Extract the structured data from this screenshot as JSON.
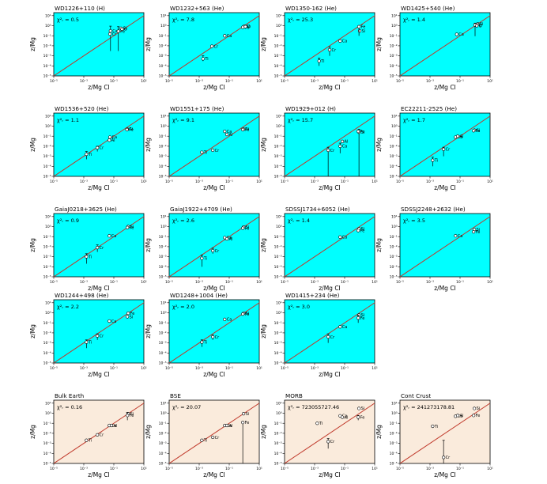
{
  "figure": {
    "axes": {
      "xlabel": "z/Mg CI",
      "ylabel": "z/Mg",
      "xticks": [
        "10⁻⁵",
        "10⁻³",
        "10⁻¹",
        "10¹"
      ],
      "yticks": [
        "10¹",
        "10⁰",
        "10⁻¹",
        "10⁻²",
        "10⁻³",
        "10⁻⁴",
        "10⁻⁵"
      ],
      "chi_label": "χ²ᵣ ="
    },
    "colors": {
      "white_dwarf_bg": "#00ffff",
      "earth_bg": "#faebdc",
      "line": "#c0392b"
    }
  },
  "chart_data": [
    {
      "type": "scatter",
      "title": "WD1226+110 (H)",
      "chi": "0.5",
      "bg": "wd",
      "points": [
        {
          "el": "Ca",
          "x": 0.06,
          "y": 0.3,
          "err": [
            0.003,
            0.9
          ]
        },
        {
          "el": "Cr",
          "x": 0.055,
          "y": 0.15
        },
        {
          "el": "Si",
          "x": 0.3,
          "y": 0.55
        },
        {
          "el": "Fe",
          "x": 0.2,
          "y": 0.28,
          "err": [
            0.003,
            0.8
          ]
        },
        {
          "el": "O",
          "x": 0.35,
          "y": 0.45
        }
      ]
    },
    {
      "type": "scatter",
      "title": "WD1232+563 (He)",
      "chi": "7.8",
      "bg": "wd",
      "points": [
        {
          "el": "Ti",
          "x": 0.0018,
          "y": 0.0005,
          "err": [
            0.0003,
            0.001
          ]
        },
        {
          "el": "Cr",
          "x": 0.007,
          "y": 0.009
        },
        {
          "el": "Ca",
          "x": 0.05,
          "y": 0.1
        },
        {
          "el": "Si",
          "x": 1.0,
          "y": 0.9
        },
        {
          "el": "Fe",
          "x": 0.8,
          "y": 0.7
        },
        {
          "el": "O",
          "x": 1.2,
          "y": 0.8
        }
      ]
    },
    {
      "type": "scatter",
      "title": "WD1350-162 (He)",
      "chi": "25.3",
      "bg": "wd",
      "points": [
        {
          "el": "Ti",
          "x": 0.002,
          "y": 0.0003,
          "err": [
            0.0001,
            0.0006
          ]
        },
        {
          "el": "Cr",
          "x": 0.01,
          "y": 0.004,
          "err": [
            0.001,
            0.008
          ]
        },
        {
          "el": "Ca",
          "x": 0.05,
          "y": 0.03
        },
        {
          "el": "Si",
          "x": 1.0,
          "y": 0.3
        },
        {
          "el": "Fe",
          "x": 0.9,
          "y": 0.8,
          "err": [
            0.1,
            1.0
          ]
        }
      ]
    },
    {
      "type": "scatter",
      "title": "WD1425+540 (He)",
      "chi": "1.4",
      "bg": "wd",
      "points": [
        {
          "el": "Ca",
          "x": 0.06,
          "y": 0.14
        },
        {
          "el": "Si",
          "x": 1.5,
          "y": 1.5
        },
        {
          "el": "Fe",
          "x": 1.0,
          "y": 1.2,
          "err": [
            0.09,
            1.8
          ]
        },
        {
          "el": "O",
          "x": 1.3,
          "y": 1.0
        }
      ]
    },
    {
      "type": "scatter",
      "title": "WD1536+520 (He)",
      "chi": "1.1",
      "bg": "wd",
      "points": [
        {
          "el": "Ti",
          "x": 0.0015,
          "y": 0.0016,
          "err": [
            0.0005,
            0.003
          ]
        },
        {
          "el": "Cr",
          "x": 0.008,
          "y": 0.007,
          "err": [
            0.003,
            0.01
          ]
        },
        {
          "el": "Al",
          "x": 0.05,
          "y": 0.04
        },
        {
          "el": "Ca",
          "x": 0.055,
          "y": 0.08
        },
        {
          "el": "Si",
          "x": 0.8,
          "y": 0.5
        },
        {
          "el": "Fe",
          "x": 0.75,
          "y": 0.45
        }
      ]
    },
    {
      "type": "scatter",
      "title": "WD1551+175 (He)",
      "chi": "9.1",
      "bg": "wd",
      "points": [
        {
          "el": "Ti",
          "x": 0.0015,
          "y": 0.0025
        },
        {
          "el": "Cr",
          "x": 0.008,
          "y": 0.004
        },
        {
          "el": "Ca",
          "x": 0.05,
          "y": 0.3
        },
        {
          "el": "Al",
          "x": 0.07,
          "y": 0.15
        },
        {
          "el": "Si",
          "x": 0.9,
          "y": 0.5
        },
        {
          "el": "Fe",
          "x": 0.8,
          "y": 0.45
        }
      ]
    },
    {
      "type": "scatter",
      "title": "WD1929+012 (H)",
      "chi": "15.7",
      "bg": "wd",
      "points": [
        {
          "el": "Cr",
          "x": 0.008,
          "y": 0.004,
          "err": [
            1e-05,
            0.008
          ]
        },
        {
          "el": "Ca",
          "x": 0.05,
          "y": 0.01,
          "err": [
            0.002,
            0.02
          ]
        },
        {
          "el": "Al",
          "x": 0.07,
          "y": 0.03
        },
        {
          "el": "Si",
          "x": 0.9,
          "y": 0.25,
          "err": [
            1e-05,
            0.5
          ]
        },
        {
          "el": "Fe",
          "x": 0.8,
          "y": 0.3
        }
      ]
    },
    {
      "type": "scatter",
      "title": "EC22211-2525 (He)",
      "chi": "1.7",
      "bg": "wd",
      "points": [
        {
          "el": "Ti",
          "x": 0.0015,
          "y": 0.0004,
          "err": [
            0.0001,
            0.0008
          ]
        },
        {
          "el": "Cr",
          "x": 0.008,
          "y": 0.005,
          "err": [
            0.001,
            0.008
          ]
        },
        {
          "el": "Ca",
          "x": 0.05,
          "y": 0.08
        },
        {
          "el": "Al",
          "x": 0.07,
          "y": 0.1
        },
        {
          "el": "Si",
          "x": 0.9,
          "y": 0.4
        },
        {
          "el": "Fe",
          "x": 0.8,
          "y": 0.35
        }
      ]
    },
    {
      "type": "scatter",
      "title": "GaiaJ0218+3625 (He)",
      "chi": "0.9",
      "bg": "wd",
      "points": [
        {
          "el": "Ti",
          "x": 0.0015,
          "y": 0.001,
          "err": [
            0.0002,
            0.002
          ]
        },
        {
          "el": "Cr",
          "x": 0.008,
          "y": 0.008,
          "err": [
            0.003,
            0.015
          ]
        },
        {
          "el": "Ca",
          "x": 0.05,
          "y": 0.12
        },
        {
          "el": "Si",
          "x": 0.9,
          "y": 1.0
        },
        {
          "el": "Fe",
          "x": 0.8,
          "y": 0.8
        }
      ]
    },
    {
      "type": "scatter",
      "title": "GaiaJ1922+4709 (He)",
      "chi": "2.6",
      "bg": "wd",
      "points": [
        {
          "el": "Ti",
          "x": 0.0015,
          "y": 0.0007,
          "err": [
            0.0001,
            0.0015
          ]
        },
        {
          "el": "Cr",
          "x": 0.008,
          "y": 0.004,
          "err": [
            0.002,
            0.007
          ]
        },
        {
          "el": "Ca",
          "x": 0.05,
          "y": 0.08
        },
        {
          "el": "Al",
          "x": 0.07,
          "y": 0.06
        },
        {
          "el": "Si",
          "x": 0.9,
          "y": 0.9
        },
        {
          "el": "Fe",
          "x": 0.8,
          "y": 0.7
        }
      ]
    },
    {
      "type": "scatter",
      "title": "SDSSJ1734+6052 (He)",
      "chi": "1.4",
      "bg": "wd",
      "points": [
        {
          "el": "Ca",
          "x": 0.05,
          "y": 0.09
        },
        {
          "el": "Si",
          "x": 0.9,
          "y": 0.6
        },
        {
          "el": "Fe",
          "x": 0.8,
          "y": 0.4
        }
      ]
    },
    {
      "type": "scatter",
      "title": "SDSSJ2248+2632 (He)",
      "chi": "3.5",
      "bg": "wd",
      "points": [
        {
          "el": "Ca",
          "x": 0.05,
          "y": 0.12
        },
        {
          "el": "Si",
          "x": 0.9,
          "y": 0.5
        },
        {
          "el": "Fe",
          "x": 0.8,
          "y": 0.3
        }
      ]
    },
    {
      "type": "scatter",
      "title": "WD1244+498 (He)",
      "chi": "2.2",
      "bg": "wd",
      "points": [
        {
          "el": "Ti",
          "x": 0.0015,
          "y": 0.0012,
          "err": [
            0.0003,
            0.002
          ]
        },
        {
          "el": "Cr",
          "x": 0.008,
          "y": 0.005,
          "err": [
            0.002,
            0.008
          ]
        },
        {
          "el": "Ca",
          "x": 0.05,
          "y": 0.15
        },
        {
          "el": "Fe",
          "x": 0.9,
          "y": 0.9
        },
        {
          "el": "Si",
          "x": 0.8,
          "y": 0.4
        }
      ]
    },
    {
      "type": "scatter",
      "title": "WD1248+1004 (He)",
      "chi": "2.0",
      "bg": "wd",
      "points": [
        {
          "el": "Ti",
          "x": 0.0015,
          "y": 0.0012,
          "err": [
            0.0004,
            0.002
          ]
        },
        {
          "el": "Cr",
          "x": 0.008,
          "y": 0.004,
          "err": [
            0.002,
            0.006
          ]
        },
        {
          "el": "Ca",
          "x": 0.05,
          "y": 0.22
        },
        {
          "el": "Si",
          "x": 0.9,
          "y": 0.9
        },
        {
          "el": "Fe",
          "x": 0.8,
          "y": 0.75
        }
      ]
    },
    {
      "type": "scatter",
      "title": "WD1415+234 (He)",
      "chi": "3.0",
      "bg": "wd",
      "points": [
        {
          "el": "Cr",
          "x": 0.008,
          "y": 0.004,
          "err": [
            0.001,
            0.008
          ]
        },
        {
          "el": "Ca",
          "x": 0.05,
          "y": 0.04
        },
        {
          "el": "Si",
          "x": 0.9,
          "y": 0.6
        },
        {
          "el": "Fe",
          "x": 0.8,
          "y": 0.3,
          "err": [
            0.1,
            0.6
          ]
        }
      ]
    },
    {
      "type": "scatter",
      "title": "Bulk Earth",
      "chi": "0.16",
      "bg": "earth",
      "points": [
        {
          "el": "Ti",
          "x": 0.0015,
          "y": 0.002
        },
        {
          "el": "Cr",
          "x": 0.008,
          "y": 0.007
        },
        {
          "el": "Ca",
          "x": 0.05,
          "y": 0.06
        },
        {
          "el": "Al",
          "x": 0.07,
          "y": 0.06
        },
        {
          "el": "Si",
          "x": 0.9,
          "y": 0.9
        },
        {
          "el": "Fe",
          "x": 0.8,
          "y": 0.6,
          "err": [
            0.2,
            1.2
          ]
        }
      ]
    },
    {
      "type": "scatter",
      "title": "BSE",
      "chi": "20.07",
      "bg": "earth",
      "points": [
        {
          "el": "Ti",
          "x": 0.0015,
          "y": 0.002
        },
        {
          "el": "Cr",
          "x": 0.008,
          "y": 0.004
        },
        {
          "el": "Ca",
          "x": 0.05,
          "y": 0.06
        },
        {
          "el": "Al",
          "x": 0.07,
          "y": 0.06
        },
        {
          "el": "Si",
          "x": 0.9,
          "y": 0.9
        },
        {
          "el": "Fe",
          "x": 0.8,
          "y": 0.12,
          "err": [
            1e-05,
            0.15
          ]
        }
      ]
    },
    {
      "type": "scatter",
      "title": "MORB",
      "chi": "723055727.46",
      "bg": "earth",
      "points": [
        {
          "el": "Ti",
          "x": 0.0015,
          "y": 0.1
        },
        {
          "el": "Cr",
          "x": 0.008,
          "y": 0.0015,
          "err": [
            0.0003,
            0.003
          ]
        },
        {
          "el": "Ca",
          "x": 0.05,
          "y": 0.55
        },
        {
          "el": "Al",
          "x": 0.07,
          "y": 0.4
        },
        {
          "el": "Si",
          "x": 0.9,
          "y": 3.0
        },
        {
          "el": "Fe",
          "x": 0.8,
          "y": 0.4,
          "err": [
            0.2,
            0.6
          ]
        }
      ]
    },
    {
      "type": "scatter",
      "title": "Cont Crust",
      "chi": "241273178.81",
      "bg": "earth",
      "points": [
        {
          "el": "Ti",
          "x": 0.0015,
          "y": 0.05
        },
        {
          "el": "Cr",
          "x": 0.008,
          "y": 4e-05,
          "err": [
            1e-05,
            0.002
          ]
        },
        {
          "el": "Ca",
          "x": 0.05,
          "y": 0.5
        },
        {
          "el": "Al",
          "x": 0.07,
          "y": 0.6
        },
        {
          "el": "Si",
          "x": 0.9,
          "y": 3.0
        },
        {
          "el": "Fe",
          "x": 0.8,
          "y": 0.6
        }
      ]
    }
  ]
}
